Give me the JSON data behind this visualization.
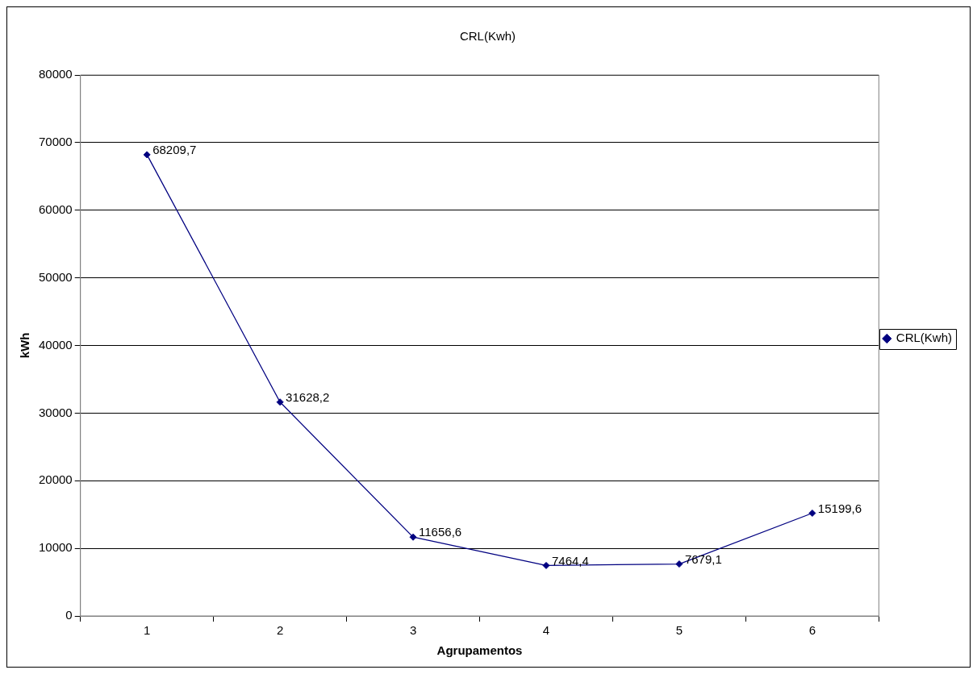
{
  "chart_data": {
    "type": "line",
    "title": "CRL(Kwh)",
    "xlabel": "Agrupamentos",
    "ylabel": "kWh",
    "categories": [
      "1",
      "2",
      "3",
      "4",
      "5",
      "6"
    ],
    "series": [
      {
        "name": "CRL(Kwh)",
        "color": "#000080",
        "values": [
          68209.7,
          31628.2,
          11656.6,
          7464.4,
          7679.1,
          15199.6
        ],
        "value_labels": [
          "68209,7",
          "31628,2",
          "11656,6",
          "7464,4",
          "7679,1",
          "15199,6"
        ]
      }
    ],
    "ylim": [
      0,
      80000
    ],
    "yticks": [
      0,
      10000,
      20000,
      30000,
      40000,
      50000,
      60000,
      70000,
      80000
    ],
    "grid": "y",
    "legend": "right",
    "marker": "diamond",
    "line_style": "solid"
  }
}
